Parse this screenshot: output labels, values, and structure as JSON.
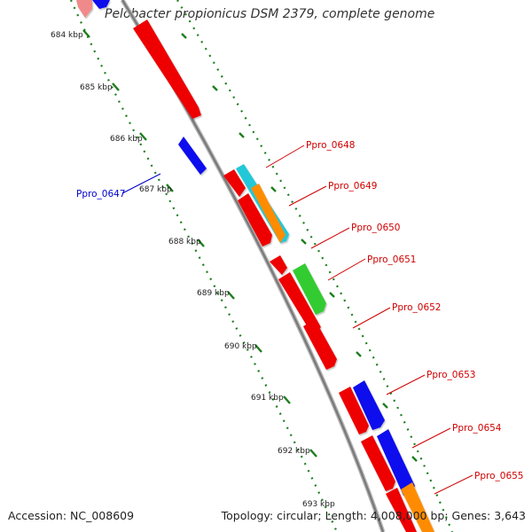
{
  "title": "Pelobacter propionicus DSM 2379, complete genome",
  "footer": {
    "accession": "Accession: NC_008609",
    "summary": "Topology: circular; Length: 4,008,000 bp; Genes: 3,643"
  },
  "colors": {
    "backbone": "#8c8c8c",
    "ruler": "#1e7e1e",
    "label_forward": "#d00000",
    "label_reverse": "#0000cc",
    "red": "#ee0000",
    "blue": "#1010ee",
    "cyan": "#22c8d8",
    "orange": "#ff8c00",
    "green": "#33cc33",
    "pink": "#f08a8a"
  },
  "ruler": {
    "unit": "kbp",
    "ticks": [
      "684 kbp",
      "685 kbp",
      "686 kbp",
      "687 kbp",
      "688 kbp",
      "689 kbp",
      "690 kbp",
      "691 kbp",
      "692 kbp",
      "693 kbp"
    ]
  },
  "genes": [
    {
      "name": "Ppro_0647",
      "color": "blue",
      "strand": "-"
    },
    {
      "name": "Ppro_0648",
      "color": "cyan",
      "strand": "+"
    },
    {
      "name": "Ppro_0649",
      "color": "orange",
      "strand": "+"
    },
    {
      "name": "Ppro_0650",
      "color": "red",
      "strand": "+"
    },
    {
      "name": "Ppro_0651",
      "color": "green",
      "strand": "+"
    },
    {
      "name": "Ppro_0652",
      "color": "red",
      "strand": "+"
    },
    {
      "name": "Ppro_0653",
      "color": "blue",
      "strand": "+"
    },
    {
      "name": "Ppro_0654",
      "color": "blue",
      "strand": "+"
    },
    {
      "name": "Ppro_0655",
      "color": "orange",
      "strand": "+"
    }
  ]
}
